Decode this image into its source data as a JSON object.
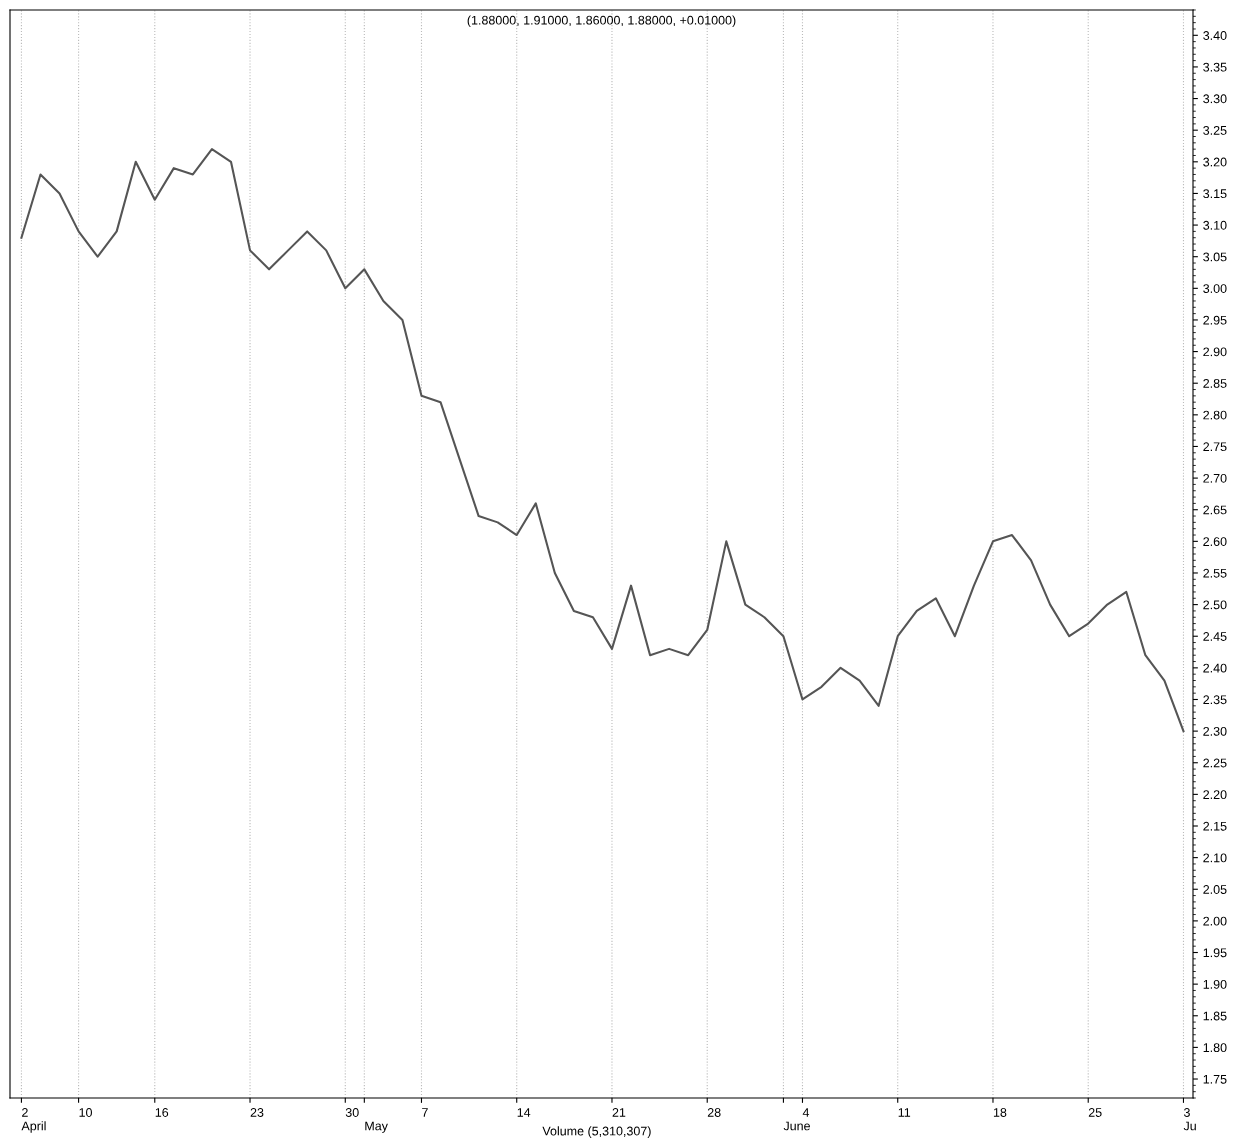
{
  "chart_data": {
    "type": "line",
    "title": "(1.88000, 1.91000, 1.86000, 1.88000, +0.01000)",
    "categories": [
      "2\nApril",
      null,
      null,
      "10",
      null,
      null,
      null,
      "16",
      null,
      null,
      null,
      null,
      "23",
      null,
      null,
      null,
      null,
      "30",
      "\nMay",
      null,
      null,
      "7",
      null,
      null,
      null,
      null,
      "14",
      null,
      null,
      null,
      null,
      "21",
      null,
      null,
      null,
      null,
      "28",
      null,
      null,
      null,
      "\nJune",
      "4",
      null,
      null,
      null,
      null,
      "11",
      null,
      null,
      null,
      null,
      "18",
      null,
      null,
      null,
      null,
      "25",
      null,
      null,
      null,
      null,
      "3\nJu"
    ],
    "series": [
      {
        "color": "#555555",
        "values": [
          3.08,
          3.18,
          3.15,
          3.09,
          3.05,
          3.09,
          3.2,
          3.14,
          3.19,
          3.18,
          3.22,
          3.2,
          3.06,
          3.03,
          3.06,
          3.09,
          3.06,
          3.0,
          3.03,
          2.98,
          2.95,
          2.83,
          2.82,
          2.73,
          2.64,
          2.63,
          2.61,
          2.66,
          2.55,
          2.49,
          2.48,
          2.43,
          2.53,
          2.42,
          2.43,
          2.42,
          2.46,
          2.6,
          2.5,
          2.48,
          2.45,
          2.35,
          2.37,
          2.4,
          2.38,
          2.34,
          2.45,
          2.49,
          2.51,
          2.45,
          2.53,
          2.6,
          2.61,
          2.57,
          2.5,
          2.45,
          2.47,
          2.5,
          2.52,
          2.42,
          2.38,
          2.3
        ]
      }
    ],
    "ylim": [
      1.72,
      3.44
    ],
    "yticks": [
      {
        "value": 1.75,
        "label": "1.75"
      },
      {
        "value": 1.8,
        "label": "1.80"
      },
      {
        "value": 1.85,
        "label": "1.85"
      },
      {
        "value": 1.9,
        "label": "1.90"
      },
      {
        "value": 1.95,
        "label": "1.95"
      },
      {
        "value": 2.0,
        "label": "2.00"
      },
      {
        "value": 2.05,
        "label": "2.05"
      },
      {
        "value": 2.1,
        "label": "2.10"
      },
      {
        "value": 2.15,
        "label": "2.15"
      },
      {
        "value": 2.2,
        "label": "2.20"
      },
      {
        "value": 2.25,
        "label": "2.25"
      },
      {
        "value": 2.3,
        "label": "2.30"
      },
      {
        "value": 2.35,
        "label": "2.35"
      },
      {
        "value": 2.4,
        "label": "2.40"
      },
      {
        "value": 2.45,
        "label": "2.45"
      },
      {
        "value": 2.5,
        "label": "2.50"
      },
      {
        "value": 2.55,
        "label": "2.55"
      },
      {
        "value": 2.6,
        "label": "2.60"
      },
      {
        "value": 2.65,
        "label": "2.65"
      },
      {
        "value": 2.7,
        "label": "2.70"
      },
      {
        "value": 2.75,
        "label": "2.75"
      },
      {
        "value": 2.8,
        "label": "2.80"
      },
      {
        "value": 2.85,
        "label": "2.85"
      },
      {
        "value": 2.9,
        "label": "2.90"
      },
      {
        "value": 2.95,
        "label": "2.95"
      },
      {
        "value": 3.0,
        "label": "3.00"
      },
      {
        "value": 3.05,
        "label": "3.05"
      },
      {
        "value": 3.1,
        "label": "3.10"
      },
      {
        "value": 3.15,
        "label": "3.15"
      },
      {
        "value": 3.2,
        "label": "3.20"
      },
      {
        "value": 3.25,
        "label": "3.25"
      },
      {
        "value": 3.3,
        "label": "3.30"
      },
      {
        "value": 3.35,
        "label": "3.35"
      },
      {
        "value": 3.4,
        "label": "3.40"
      }
    ],
    "grid": "x",
    "annotations": [
      "Volume (5,310,307)"
    ],
    "line_style": "solid"
  }
}
